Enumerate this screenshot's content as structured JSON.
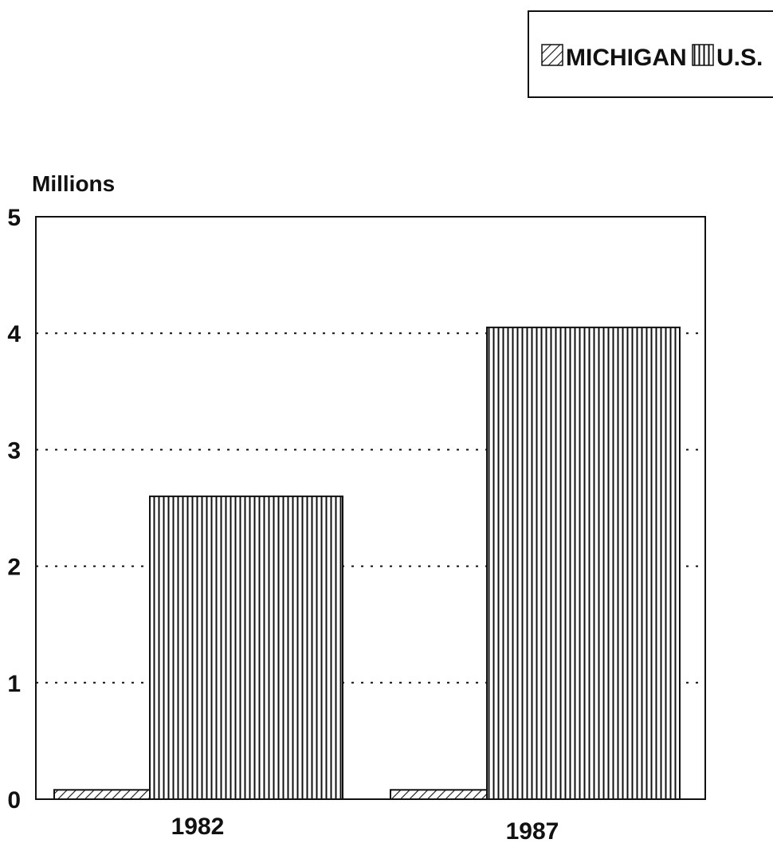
{
  "chart_data": {
    "type": "bar",
    "ylabel": "Millions",
    "categories": [
      "1982",
      "1987"
    ],
    "ylim": [
      0,
      5
    ],
    "yticks": [
      "0",
      "1",
      "2",
      "3",
      "4",
      "5"
    ],
    "grid": true,
    "legend_position": "top-right",
    "series": [
      {
        "name": "MICHIGAN",
        "values": [
          0.08,
          0.08
        ],
        "pattern": "diagonal-hatch"
      },
      {
        "name": "U.S.",
        "values": [
          2.6,
          4.05
        ],
        "pattern": "vertical-hatch"
      }
    ]
  }
}
